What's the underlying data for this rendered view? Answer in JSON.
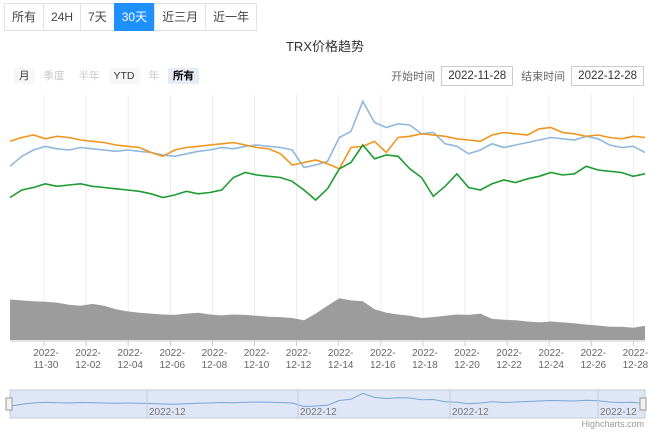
{
  "tabs": [
    "所有",
    "24H",
    "7天",
    "30天",
    "近三月",
    "近一年"
  ],
  "active_tab": 3,
  "title": "TRX价格趋势",
  "range_buttons": [
    {
      "label": "月",
      "state": "normal"
    },
    {
      "label": "季度",
      "state": "disabled"
    },
    {
      "label": "半年",
      "state": "disabled"
    },
    {
      "label": "YTD",
      "state": "normal"
    },
    {
      "label": "年",
      "state": "disabled"
    },
    {
      "label": "所有",
      "state": "selected"
    }
  ],
  "date_range": {
    "start_label": "开始时间",
    "start_value": "2022-11-28",
    "end_label": "结束时间",
    "end_value": "2022-12-28"
  },
  "credit": "Highcharts.com",
  "colors": {
    "orange": "#f0961e",
    "blue": "#8fb8de",
    "green": "#1e9b32",
    "volume": "#9c9c9c",
    "tab_active": "#1e90ff"
  },
  "chart_data": {
    "type": "line",
    "x_range": [
      "2022-11-28",
      "2022-12-28"
    ],
    "x_ticks": [
      [
        "2022-",
        "11-30"
      ],
      [
        "2022-",
        "12-02"
      ],
      [
        "2022-",
        "12-04"
      ],
      [
        "2022-",
        "12-06"
      ],
      [
        "2022-",
        "12-08"
      ],
      [
        "2022-",
        "12-10"
      ],
      [
        "2022-",
        "12-12"
      ],
      [
        "2022-",
        "12-14"
      ],
      [
        "2022-",
        "12-16"
      ],
      [
        "2022-",
        "12-18"
      ],
      [
        "2022-",
        "12-20"
      ],
      [
        "2022-",
        "12-22"
      ],
      [
        "2022-",
        "12-24"
      ],
      [
        "2022-",
        "12-26"
      ],
      [
        "2022-",
        "12-28"
      ]
    ],
    "navigator_labels": [
      "2022-12",
      "2022-12",
      "2022-12",
      "2022-12"
    ],
    "series": [
      {
        "color": "orange",
        "values": [
          0.67,
          0.7,
          0.72,
          0.69,
          0.71,
          0.7,
          0.68,
          0.67,
          0.66,
          0.64,
          0.63,
          0.62,
          0.58,
          0.55,
          0.6,
          0.62,
          0.63,
          0.64,
          0.65,
          0.66,
          0.64,
          0.62,
          0.61,
          0.57,
          0.48,
          0.5,
          0.52,
          0.49,
          0.45,
          0.62,
          0.63,
          0.67,
          0.58,
          0.7,
          0.71,
          0.73,
          0.72,
          0.71,
          0.69,
          0.68,
          0.67,
          0.72,
          0.74,
          0.73,
          0.72,
          0.77,
          0.78,
          0.74,
          0.73,
          0.71,
          0.72,
          0.7,
          0.69,
          0.71,
          0.7
        ]
      },
      {
        "color": "blue",
        "values": [
          0.47,
          0.55,
          0.6,
          0.63,
          0.61,
          0.6,
          0.62,
          0.61,
          0.6,
          0.59,
          0.6,
          0.59,
          0.58,
          0.56,
          0.55,
          0.57,
          0.59,
          0.6,
          0.62,
          0.61,
          0.63,
          0.64,
          0.63,
          0.62,
          0.6,
          0.46,
          0.48,
          0.51,
          0.7,
          0.75,
          0.99,
          0.82,
          0.78,
          0.81,
          0.8,
          0.73,
          0.74,
          0.65,
          0.63,
          0.57,
          0.6,
          0.65,
          0.62,
          0.64,
          0.66,
          0.68,
          0.7,
          0.69,
          0.68,
          0.71,
          0.69,
          0.64,
          0.62,
          0.63,
          0.58
        ]
      },
      {
        "color": "green",
        "values": [
          0.22,
          0.28,
          0.3,
          0.33,
          0.31,
          0.32,
          0.33,
          0.31,
          0.3,
          0.29,
          0.28,
          0.27,
          0.25,
          0.22,
          0.24,
          0.27,
          0.25,
          0.26,
          0.28,
          0.38,
          0.42,
          0.4,
          0.39,
          0.38,
          0.35,
          0.28,
          0.2,
          0.29,
          0.45,
          0.5,
          0.64,
          0.53,
          0.56,
          0.55,
          0.45,
          0.38,
          0.23,
          0.31,
          0.41,
          0.3,
          0.28,
          0.33,
          0.36,
          0.34,
          0.37,
          0.39,
          0.42,
          0.4,
          0.41,
          0.47,
          0.44,
          0.43,
          0.42,
          0.39,
          0.41
        ]
      },
      {
        "color": "volume",
        "values": [
          0.92,
          0.9,
          0.88,
          0.87,
          0.85,
          0.8,
          0.78,
          0.82,
          0.78,
          0.7,
          0.65,
          0.62,
          0.6,
          0.58,
          0.57,
          0.6,
          0.62,
          0.58,
          0.56,
          0.58,
          0.57,
          0.55,
          0.53,
          0.52,
          0.5,
          0.45,
          0.6,
          0.78,
          0.95,
          0.9,
          0.88,
          0.7,
          0.62,
          0.58,
          0.55,
          0.5,
          0.52,
          0.55,
          0.58,
          0.57,
          0.6,
          0.48,
          0.46,
          0.45,
          0.42,
          0.4,
          0.42,
          0.4,
          0.38,
          0.35,
          0.33,
          0.3,
          0.3,
          0.28,
          0.32
        ]
      }
    ]
  }
}
